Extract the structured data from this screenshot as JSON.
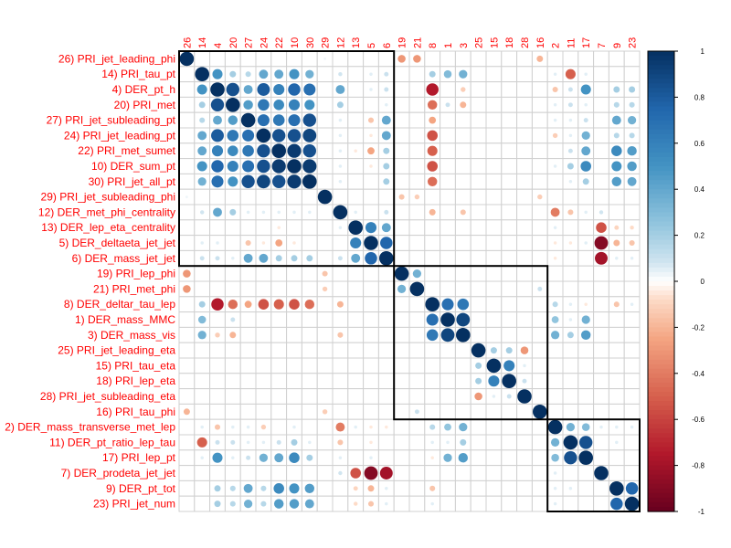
{
  "chart_data": {
    "type": "heatmap",
    "style": "correlation-circles",
    "labels": [
      "26) PRI_jet_leading_phi",
      "14) PRI_tau_pt",
      "4) DER_pt_h",
      "20) PRI_met",
      "27) PRI_jet_subleading_pt",
      "24) PRI_jet_leading_pt",
      "22) PRI_met_sumet",
      "10) DER_sum_pt",
      "30) PRI_jet_all_pt",
      "29) PRI_jet_subleading_phi",
      "12) DER_met_phi_centrality",
      "13) DER_lep_eta_centrality",
      "5) DER_deltaeta_jet_jet",
      "6) DER_mass_jet_jet",
      "19) PRI_lep_phi",
      "21) PRI_met_phi",
      "8) DER_deltar_tau_lep",
      "1) DER_mass_MMC",
      "3) DER_mass_vis",
      "25) PRI_jet_leading_eta",
      "15) PRI_tau_eta",
      "18) PRI_lep_eta",
      "28) PRI_jet_subleading_eta",
      "16) PRI_tau_phi",
      "2) DER_mass_transverse_met_lep",
      "11) DER_pt_ratio_lep_tau",
      "17) PRI_lep_pt",
      "7) DER_prodeta_jet_jet",
      "9) DER_pt_tot",
      "23) PRI_jet_num"
    ],
    "column_labels": [
      "26",
      "14",
      "4",
      "20",
      "27",
      "24",
      "22",
      "10",
      "30",
      "29",
      "12",
      "13",
      "5",
      "6",
      "19",
      "21",
      "8",
      "1",
      "3",
      "25",
      "15",
      "18",
      "28",
      "16",
      "2",
      "11",
      "17",
      "7",
      "9",
      "23"
    ],
    "value_range": [
      -1,
      1
    ],
    "colorbar_ticks": [
      "1",
      "0.8",
      "0.6",
      "0.4",
      "0.2",
      "0",
      "-0.2",
      "-0.4",
      "-0.6",
      "-0.8",
      "-1"
    ],
    "color_low": "#67001F",
    "color_mid": "#FFFFFF",
    "color_high": "#053061",
    "label_color": "#FF0000",
    "cluster_boxes": [
      {
        "from": 1,
        "to": 14
      },
      {
        "from": 15,
        "to": 24
      },
      {
        "from": 25,
        "to": 30
      }
    ],
    "correlations": [
      {
        "a": 1,
        "b": 15,
        "r": -0.3
      },
      {
        "a": 1,
        "b": 16,
        "r": -0.3
      },
      {
        "a": 1,
        "b": 24,
        "r": -0.2
      },
      {
        "a": 1,
        "b": 10,
        "r": 0.03
      },
      {
        "a": 2,
        "b": 3,
        "r": 0.5
      },
      {
        "a": 2,
        "b": 4,
        "r": 0.2
      },
      {
        "a": 2,
        "b": 5,
        "r": 0.15
      },
      {
        "a": 2,
        "b": 6,
        "r": 0.4
      },
      {
        "a": 2,
        "b": 7,
        "r": 0.4
      },
      {
        "a": 2,
        "b": 8,
        "r": 0.5
      },
      {
        "a": 2,
        "b": 9,
        "r": 0.35
      },
      {
        "a": 2,
        "b": 11,
        "r": 0.08
      },
      {
        "a": 2,
        "b": 13,
        "r": 0.05
      },
      {
        "a": 2,
        "b": 14,
        "r": 0.1
      },
      {
        "a": 2,
        "b": 17,
        "r": 0.2
      },
      {
        "a": 2,
        "b": 18,
        "r": 0.3
      },
      {
        "a": 2,
        "b": 19,
        "r": 0.35
      },
      {
        "a": 2,
        "b": 25,
        "r": 0.05
      },
      {
        "a": 2,
        "b": 26,
        "r": -0.5
      },
      {
        "a": 2,
        "b": 27,
        "r": 0.05
      },
      {
        "a": 3,
        "b": 4,
        "r": 0.85
      },
      {
        "a": 3,
        "b": 5,
        "r": 0.4
      },
      {
        "a": 3,
        "b": 6,
        "r": 0.8
      },
      {
        "a": 3,
        "b": 7,
        "r": 0.6
      },
      {
        "a": 3,
        "b": 8,
        "r": 0.75
      },
      {
        "a": 3,
        "b": 9,
        "r": 0.7
      },
      {
        "a": 3,
        "b": 11,
        "r": 0.4
      },
      {
        "a": 3,
        "b": 13,
        "r": 0.05
      },
      {
        "a": 3,
        "b": 14,
        "r": 0.1
      },
      {
        "a": 3,
        "b": 17,
        "r": -0.75
      },
      {
        "a": 3,
        "b": 19,
        "r": -0.12
      },
      {
        "a": 3,
        "b": 25,
        "r": -0.15
      },
      {
        "a": 3,
        "b": 26,
        "r": 0.1
      },
      {
        "a": 3,
        "b": 27,
        "r": 0.5
      },
      {
        "a": 3,
        "b": 29,
        "r": 0.2
      },
      {
        "a": 3,
        "b": 30,
        "r": 0.2
      },
      {
        "a": 4,
        "b": 5,
        "r": 0.45
      },
      {
        "a": 4,
        "b": 6,
        "r": 0.65
      },
      {
        "a": 4,
        "b": 7,
        "r": 0.55
      },
      {
        "a": 4,
        "b": 8,
        "r": 0.6
      },
      {
        "a": 4,
        "b": 9,
        "r": 0.5
      },
      {
        "a": 4,
        "b": 11,
        "r": 0.2
      },
      {
        "a": 4,
        "b": 14,
        "r": 0.05
      },
      {
        "a": 4,
        "b": 17,
        "r": -0.45
      },
      {
        "a": 4,
        "b": 18,
        "r": 0.1
      },
      {
        "a": 4,
        "b": 19,
        "r": -0.2
      },
      {
        "a": 4,
        "b": 25,
        "r": 0.05
      },
      {
        "a": 4,
        "b": 26,
        "r": 0.1
      },
      {
        "a": 4,
        "b": 27,
        "r": 0.05
      },
      {
        "a": 4,
        "b": 29,
        "r": 0.15
      },
      {
        "a": 4,
        "b": 30,
        "r": 0.15
      },
      {
        "a": 5,
        "b": 6,
        "r": 0.7
      },
      {
        "a": 5,
        "b": 7,
        "r": 0.65
      },
      {
        "a": 5,
        "b": 8,
        "r": 0.7
      },
      {
        "a": 5,
        "b": 9,
        "r": 0.85
      },
      {
        "a": 5,
        "b": 11,
        "r": 0.05
      },
      {
        "a": 5,
        "b": 13,
        "r": -0.15
      },
      {
        "a": 5,
        "b": 14,
        "r": 0.4
      },
      {
        "a": 5,
        "b": 17,
        "r": -0.25
      },
      {
        "a": 5,
        "b": 25,
        "r": 0.05
      },
      {
        "a": 5,
        "b": 26,
        "r": 0.05
      },
      {
        "a": 5,
        "b": 27,
        "r": 0.1
      },
      {
        "a": 5,
        "b": 29,
        "r": 0.4
      },
      {
        "a": 5,
        "b": 30,
        "r": 0.35
      },
      {
        "a": 6,
        "b": 7,
        "r": 0.85
      },
      {
        "a": 6,
        "b": 8,
        "r": 0.85
      },
      {
        "a": 6,
        "b": 9,
        "r": 0.9
      },
      {
        "a": 6,
        "b": 11,
        "r": 0.05
      },
      {
        "a": 6,
        "b": 13,
        "r": -0.05
      },
      {
        "a": 6,
        "b": 14,
        "r": 0.4
      },
      {
        "a": 6,
        "b": 17,
        "r": -0.55
      },
      {
        "a": 6,
        "b": 25,
        "r": -0.12
      },
      {
        "a": 6,
        "b": 26,
        "r": 0.05
      },
      {
        "a": 6,
        "b": 27,
        "r": 0.35
      },
      {
        "a": 6,
        "b": 29,
        "r": 0.15
      },
      {
        "a": 6,
        "b": 30,
        "r": 0.15
      },
      {
        "a": 7,
        "b": 8,
        "r": 0.95
      },
      {
        "a": 7,
        "b": 9,
        "r": 0.85
      },
      {
        "a": 7,
        "b": 11,
        "r": 0.05
      },
      {
        "a": 7,
        "b": 12,
        "r": -0.05
      },
      {
        "a": 7,
        "b": 13,
        "r": -0.25
      },
      {
        "a": 7,
        "b": 14,
        "r": 0.2
      },
      {
        "a": 7,
        "b": 17,
        "r": -0.5
      },
      {
        "a": 7,
        "b": 26,
        "r": 0.1
      },
      {
        "a": 7,
        "b": 27,
        "r": 0.4
      },
      {
        "a": 7,
        "b": 29,
        "r": 0.55
      },
      {
        "a": 7,
        "b": 30,
        "r": 0.45
      },
      {
        "a": 8,
        "b": 9,
        "r": 0.95
      },
      {
        "a": 8,
        "b": 11,
        "r": 0.05
      },
      {
        "a": 8,
        "b": 13,
        "r": -0.05
      },
      {
        "a": 8,
        "b": 14,
        "r": 0.2
      },
      {
        "a": 8,
        "b": 17,
        "r": -0.55
      },
      {
        "a": 8,
        "b": 25,
        "r": 0.05
      },
      {
        "a": 8,
        "b": 26,
        "r": 0.2
      },
      {
        "a": 8,
        "b": 27,
        "r": 0.55
      },
      {
        "a": 8,
        "b": 29,
        "r": 0.5
      },
      {
        "a": 8,
        "b": 30,
        "r": 0.45
      },
      {
        "a": 9,
        "b": 11,
        "r": 0.05
      },
      {
        "a": 9,
        "b": 14,
        "r": 0.2
      },
      {
        "a": 9,
        "b": 17,
        "r": -0.45
      },
      {
        "a": 9,
        "b": 26,
        "r": 0.05
      },
      {
        "a": 9,
        "b": 27,
        "r": 0.2
      },
      {
        "a": 9,
        "b": 29,
        "r": 0.45
      },
      {
        "a": 9,
        "b": 30,
        "r": 0.4
      },
      {
        "a": 10,
        "b": 15,
        "r": -0.15
      },
      {
        "a": 10,
        "b": 16,
        "r": -0.12
      },
      {
        "a": 10,
        "b": 24,
        "r": -0.12
      },
      {
        "a": 11,
        "b": 12,
        "r": 0.05
      },
      {
        "a": 11,
        "b": 14,
        "r": 0.1
      },
      {
        "a": 11,
        "b": 17,
        "r": -0.2
      },
      {
        "a": 11,
        "b": 19,
        "r": -0.15
      },
      {
        "a": 11,
        "b": 25,
        "r": -0.4
      },
      {
        "a": 11,
        "b": 26,
        "r": -0.15
      },
      {
        "a": 11,
        "b": 27,
        "r": 0.05
      },
      {
        "a": 11,
        "b": 28,
        "r": 0.08
      },
      {
        "a": 12,
        "b": 13,
        "r": 0.6
      },
      {
        "a": 12,
        "b": 14,
        "r": 0.4
      },
      {
        "a": 12,
        "b": 25,
        "r": 0.05
      },
      {
        "a": 12,
        "b": 28,
        "r": -0.55
      },
      {
        "a": 12,
        "b": 29,
        "r": -0.1
      },
      {
        "a": 12,
        "b": 30,
        "r": -0.08
      },
      {
        "a": 13,
        "b": 14,
        "r": 0.75
      },
      {
        "a": 13,
        "b": 25,
        "r": -0.05
      },
      {
        "a": 13,
        "b": 26,
        "r": -0.05
      },
      {
        "a": 13,
        "b": 27,
        "r": 0.05
      },
      {
        "a": 13,
        "b": 28,
        "r": -0.9
      },
      {
        "a": 13,
        "b": 29,
        "r": -0.2
      },
      {
        "a": 13,
        "b": 30,
        "r": -0.15
      },
      {
        "a": 14,
        "b": 25,
        "r": -0.05
      },
      {
        "a": 14,
        "b": 28,
        "r": -0.8
      },
      {
        "a": 14,
        "b": 29,
        "r": 0.05
      },
      {
        "a": 14,
        "b": 30,
        "r": 0.05
      },
      {
        "a": 15,
        "b": 16,
        "r": 0.35
      },
      {
        "a": 16,
        "b": 24,
        "r": 0.1
      },
      {
        "a": 17,
        "b": 18,
        "r": 0.7
      },
      {
        "a": 17,
        "b": 19,
        "r": 0.65
      },
      {
        "a": 17,
        "b": 25,
        "r": 0.15
      },
      {
        "a": 17,
        "b": 26,
        "r": 0.05
      },
      {
        "a": 17,
        "b": 27,
        "r": -0.05
      },
      {
        "a": 17,
        "b": 29,
        "r": -0.15
      },
      {
        "a": 17,
        "b": 30,
        "r": 0.05
      },
      {
        "a": 18,
        "b": 19,
        "r": 0.9
      },
      {
        "a": 18,
        "b": 25,
        "r": 0.25
      },
      {
        "a": 18,
        "b": 26,
        "r": 0.05
      },
      {
        "a": 18,
        "b": 27,
        "r": 0.35
      },
      {
        "a": 19,
        "b": 25,
        "r": 0.35
      },
      {
        "a": 19,
        "b": 26,
        "r": 0.2
      },
      {
        "a": 19,
        "b": 27,
        "r": 0.45
      },
      {
        "a": 20,
        "b": 21,
        "r": 0.2
      },
      {
        "a": 20,
        "b": 22,
        "r": 0.2
      },
      {
        "a": 20,
        "b": 23,
        "r": -0.3
      },
      {
        "a": 21,
        "b": 22,
        "r": 0.6
      },
      {
        "a": 21,
        "b": 23,
        "r": 0.05
      },
      {
        "a": 22,
        "b": 23,
        "r": 0.1
      },
      {
        "a": 25,
        "b": 26,
        "r": 0.35
      },
      {
        "a": 25,
        "b": 27,
        "r": 0.3
      },
      {
        "a": 25,
        "b": 28,
        "r": 0.05
      },
      {
        "a": 25,
        "b": 29,
        "r": 0.05
      },
      {
        "a": 25,
        "b": 30,
        "r": 0.05
      },
      {
        "a": 26,
        "b": 27,
        "r": 0.85
      },
      {
        "a": 26,
        "b": 29,
        "r": 0.05
      },
      {
        "a": 29,
        "b": 30,
        "r": 0.75
      }
    ]
  }
}
